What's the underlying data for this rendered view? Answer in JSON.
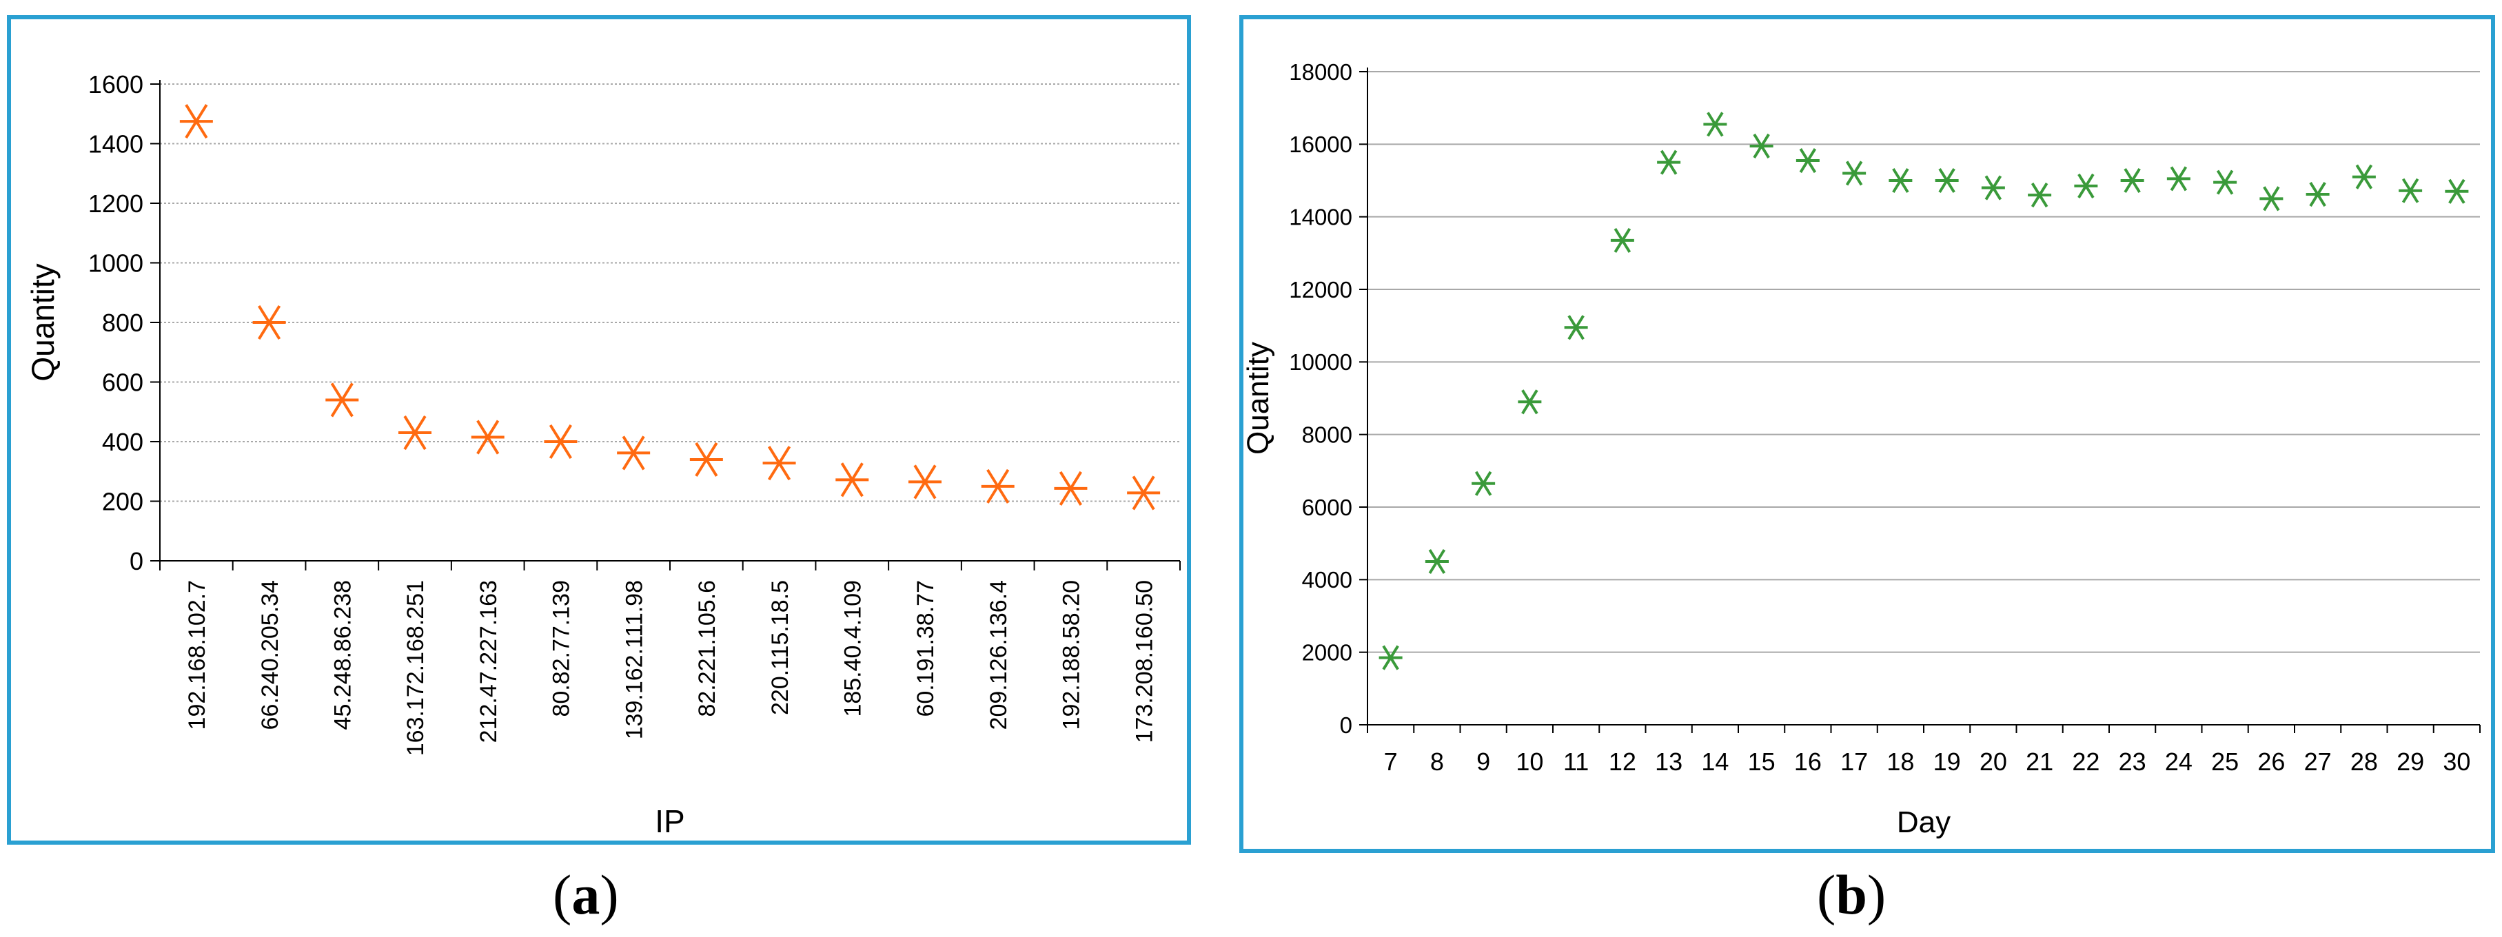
{
  "chart_data": [
    {
      "type": "scatter",
      "panel_label": "a",
      "xlabel": "IP",
      "ylabel": "Quantity",
      "categories": [
        "192.168.102.7",
        "66.240.205.34",
        "45.248.86.238",
        "163.172.168.251",
        "212.47.227.163",
        "80.82.77.139",
        "139.162.111.98",
        "82.221.105.6",
        "220.115.18.5",
        "185.40.4.109",
        "60.191.38.77",
        "209.126.136.4",
        "192.188.58.20",
        "173.208.160.50"
      ],
      "values": [
        1475,
        800,
        540,
        430,
        415,
        400,
        362,
        340,
        328,
        272,
        265,
        250,
        243,
        228
      ],
      "ylim": [
        0,
        1600
      ],
      "yticks": [
        0,
        200,
        400,
        600,
        800,
        1000,
        1200,
        1400,
        1600
      ],
      "grid": "horizontal-dotted",
      "marker_color": "#ff6a10",
      "marker": "asterisk"
    },
    {
      "type": "scatter",
      "panel_label": "b",
      "xlabel": "Day",
      "ylabel": "Quantity",
      "categories": [
        "7",
        "8",
        "9",
        "10",
        "11",
        "12",
        "13",
        "14",
        "15",
        "16",
        "17",
        "18",
        "19",
        "20",
        "21",
        "22",
        "23",
        "24",
        "25",
        "26",
        "27",
        "28",
        "29",
        "30"
      ],
      "values": [
        1850,
        4500,
        6650,
        8900,
        10950,
        13350,
        15500,
        16550,
        15950,
        15550,
        15200,
        15000,
        15000,
        14800,
        14600,
        14850,
        15000,
        15050,
        14950,
        14500,
        14620,
        15100,
        14720,
        14700
      ],
      "ylim": [
        0,
        18000
      ],
      "yticks": [
        0,
        2000,
        4000,
        6000,
        8000,
        10000,
        12000,
        14000,
        16000,
        18000
      ],
      "grid": "horizontal-solid",
      "marker_color": "#3a9a3a",
      "marker": "asterisk"
    }
  ]
}
